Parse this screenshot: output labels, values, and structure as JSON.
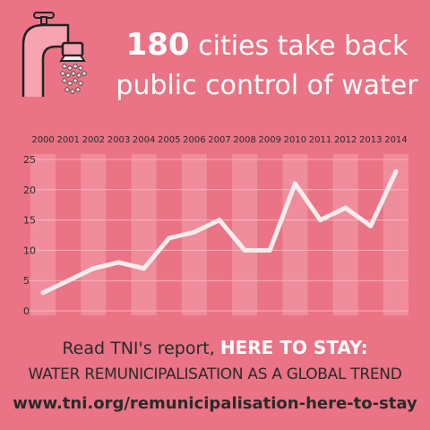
{
  "headline": {
    "number": "180",
    "line1_rest": " cities take back",
    "line2": "public control of water"
  },
  "footer": {
    "read_prefix": "Read TNI's report, ",
    "report_title": "HERE TO STAY:",
    "subtitle": "WATER REMUNICIPALISATION AS A GLOBAL TREND",
    "url": "www.tni.org/remunicipalisation-here-to-stay"
  },
  "colors": {
    "background": "#ea7385",
    "band_light": "#f08d9c",
    "line": "#f4eded",
    "text_dark": "#2a2a2a"
  },
  "icons": [
    "water-faucet-icon"
  ],
  "chart_data": {
    "type": "line",
    "x": [
      "2000",
      "2001",
      "2002",
      "2003",
      "2004",
      "2005",
      "2006",
      "2007",
      "2008",
      "2009",
      "2010",
      "2011",
      "2012",
      "2013",
      "2014"
    ],
    "series": [
      {
        "values": [
          3,
          5,
          7,
          8,
          7,
          12,
          13,
          15,
          10,
          10,
          21,
          15,
          17,
          14,
          23
        ]
      }
    ],
    "yticks": [
      0,
      5,
      10,
      15,
      20,
      25
    ],
    "ylim": [
      0,
      25
    ],
    "grid": true,
    "legend": "none"
  }
}
